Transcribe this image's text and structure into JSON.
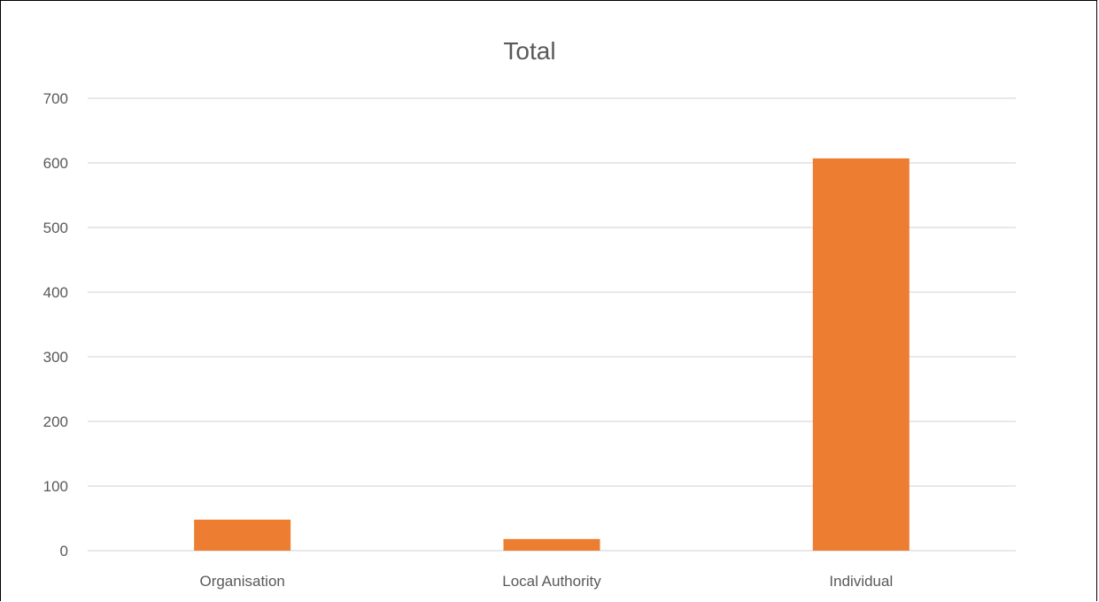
{
  "chart_data": {
    "type": "bar",
    "title": "Total",
    "categories": [
      "Organisation",
      "Local Authority",
      "Individual"
    ],
    "values": [
      48,
      18,
      607
    ],
    "xlabel": "",
    "ylabel": "",
    "ylim": [
      0,
      700
    ],
    "yticks": [
      "0",
      "100",
      "200",
      "300",
      "400",
      "500",
      "600",
      "700"
    ],
    "grid": true,
    "legend": "none",
    "bar_color": "#ED7D31",
    "grid_color": "#D9D9D9",
    "text_color": "#595959"
  }
}
